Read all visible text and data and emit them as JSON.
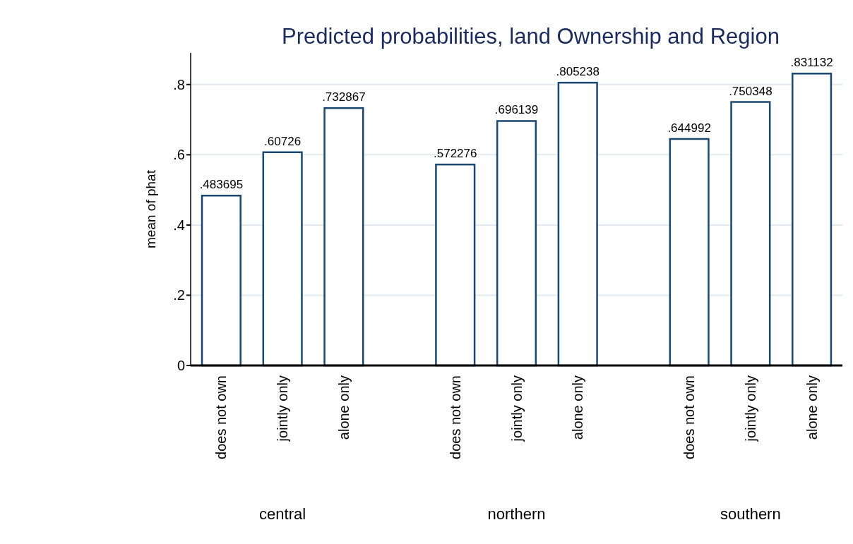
{
  "chart_data": {
    "type": "bar",
    "title": "Predicted probabilities, land Ownership and Region",
    "ylabel": "mean of phat",
    "categories": [
      "does not own",
      "jointly only",
      "alone only",
      "does not own",
      "jointly only",
      "alone only",
      "does not own",
      "jointly only",
      "alone only"
    ],
    "annotations": [
      "central",
      "northern",
      "southern"
    ],
    "values": [
      0.483695,
      0.60726,
      0.732867,
      0.572276,
      0.696139,
      0.805238,
      0.644992,
      0.750348,
      0.831132
    ],
    "value_labels": [
      ".483695",
      ".60726",
      ".732867",
      ".572276",
      ".696139",
      ".805238",
      ".644992",
      ".750348",
      ".831132"
    ],
    "color": "#1a476f",
    "grid": "y",
    "ylim": [
      0,
      0.89
    ],
    "yticks": [
      0,
      {
        "value": 0.2,
        "label": ".2"
      },
      {
        "value": 0.4,
        "label": ".4"
      },
      {
        "value": 0.6,
        "label": ".6"
      },
      {
        "value": 0.8,
        "label": ".8"
      }
    ]
  }
}
